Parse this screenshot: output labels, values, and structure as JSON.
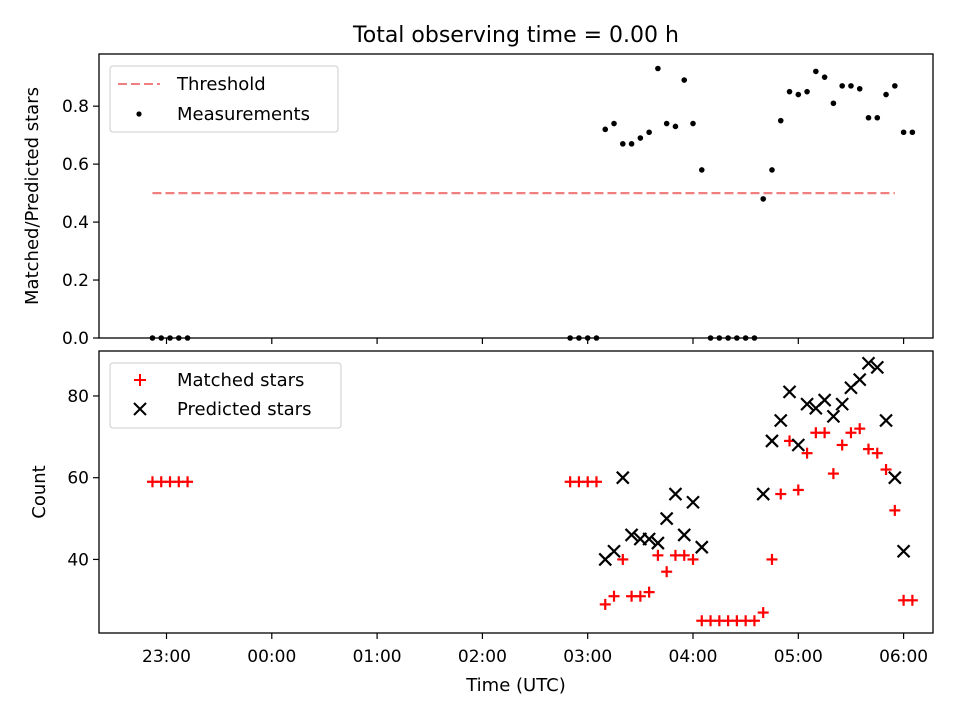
{
  "title": "Total observing time = 0.00 h",
  "chart_data": [
    {
      "type": "scatter",
      "ylabel": "Matched/Predicted stars",
      "ylim": [
        0,
        0.98
      ],
      "yticks": [
        "0.0",
        "0.2",
        "0.4",
        "0.6",
        "0.8"
      ],
      "legend": {
        "placement": "top-left",
        "entries": [
          "Threshold",
          "Measurements"
        ]
      },
      "series": [
        {
          "name": "Threshold",
          "kind": "dashed-line",
          "color": "#f08080",
          "x": [
            "22:52",
            "05:55"
          ],
          "y": [
            0.5,
            0.5
          ]
        },
        {
          "name": "Measurements",
          "kind": "dots",
          "color": "#000000",
          "x": [
            "22:52",
            "22:57",
            "23:02",
            "23:07",
            "23:12",
            "02:50",
            "02:55",
            "03:00",
            "03:05",
            "03:10",
            "03:15",
            "03:20",
            "03:25",
            "03:30",
            "03:35",
            "03:40",
            "03:45",
            "03:50",
            "03:55",
            "04:00",
            "04:05",
            "04:10",
            "04:15",
            "04:20",
            "04:25",
            "04:30",
            "04:35",
            "04:40",
            "04:45",
            "04:50",
            "04:55",
            "05:00",
            "05:05",
            "05:10",
            "05:15",
            "05:20",
            "05:25",
            "05:30",
            "05:35",
            "05:40",
            "05:45",
            "05:50",
            "05:55",
            "06:00",
            "06:05"
          ],
          "y": [
            0,
            0,
            0,
            0,
            0,
            0,
            0,
            0,
            0,
            0.72,
            0.74,
            0.67,
            0.67,
            0.69,
            0.71,
            0.93,
            0.74,
            0.73,
            0.89,
            0.74,
            0.58,
            0,
            0,
            0,
            0,
            0,
            0,
            0.48,
            0.58,
            0.75,
            0.85,
            0.84,
            0.85,
            0.92,
            0.9,
            0.81,
            0.87,
            0.87,
            0.86,
            0.76,
            0.76,
            0.84,
            0.87,
            0.71,
            0.71
          ]
        }
      ]
    },
    {
      "type": "scatter",
      "xlabel": "Time (UTC)",
      "ylabel": "Count",
      "ylim": [
        22,
        91
      ],
      "yticks": [
        "40",
        "60",
        "80"
      ],
      "xticks": [
        "23:00",
        "00:00",
        "01:00",
        "02:00",
        "03:00",
        "04:00",
        "05:00",
        "06:00"
      ],
      "legend": {
        "placement": "top-left",
        "entries": [
          "Matched stars",
          "Predicted stars"
        ]
      },
      "series": [
        {
          "name": "Matched stars",
          "kind": "plus",
          "color": "#ff0000",
          "x": [
            "22:52",
            "22:57",
            "23:02",
            "23:07",
            "23:12",
            "02:50",
            "02:55",
            "03:00",
            "03:05",
            "03:10",
            "03:15",
            "03:20",
            "03:25",
            "03:30",
            "03:35",
            "03:40",
            "03:45",
            "03:50",
            "03:55",
            "04:00",
            "04:05",
            "04:10",
            "04:15",
            "04:20",
            "04:25",
            "04:30",
            "04:35",
            "04:40",
            "04:45",
            "04:50",
            "04:55",
            "05:00",
            "05:05",
            "05:10",
            "05:15",
            "05:20",
            "05:25",
            "05:30",
            "05:35",
            "05:40",
            "05:45",
            "05:50",
            "05:55",
            "06:00",
            "06:05"
          ],
          "y": [
            59,
            59,
            59,
            59,
            59,
            59,
            59,
            59,
            59,
            29,
            31,
            40,
            31,
            31,
            32,
            41,
            37,
            41,
            41,
            40,
            25,
            25,
            25,
            25,
            25,
            25,
            25,
            27,
            40,
            56,
            69,
            57,
            66,
            71,
            71,
            61,
            68,
            71,
            72,
            67,
            66,
            62,
            52,
            30,
            30
          ]
        },
        {
          "name": "Predicted stars",
          "kind": "cross",
          "color": "#000000",
          "x": [
            "03:10",
            "03:15",
            "03:20",
            "03:25",
            "03:30",
            "03:35",
            "03:40",
            "03:45",
            "03:50",
            "03:55",
            "04:00",
            "04:05",
            "04:40",
            "04:45",
            "04:50",
            "04:55",
            "05:00",
            "05:05",
            "05:10",
            "05:15",
            "05:20",
            "05:25",
            "05:30",
            "05:35",
            "05:40",
            "05:45",
            "05:50",
            "05:55",
            "06:00"
          ],
          "y": [
            40,
            42,
            60,
            46,
            45,
            45,
            44,
            50,
            56,
            46,
            54,
            43,
            56,
            69,
            74,
            81,
            68,
            78,
            77,
            79,
            75,
            78,
            82,
            84,
            88,
            87,
            74,
            60,
            42
          ]
        }
      ]
    }
  ]
}
